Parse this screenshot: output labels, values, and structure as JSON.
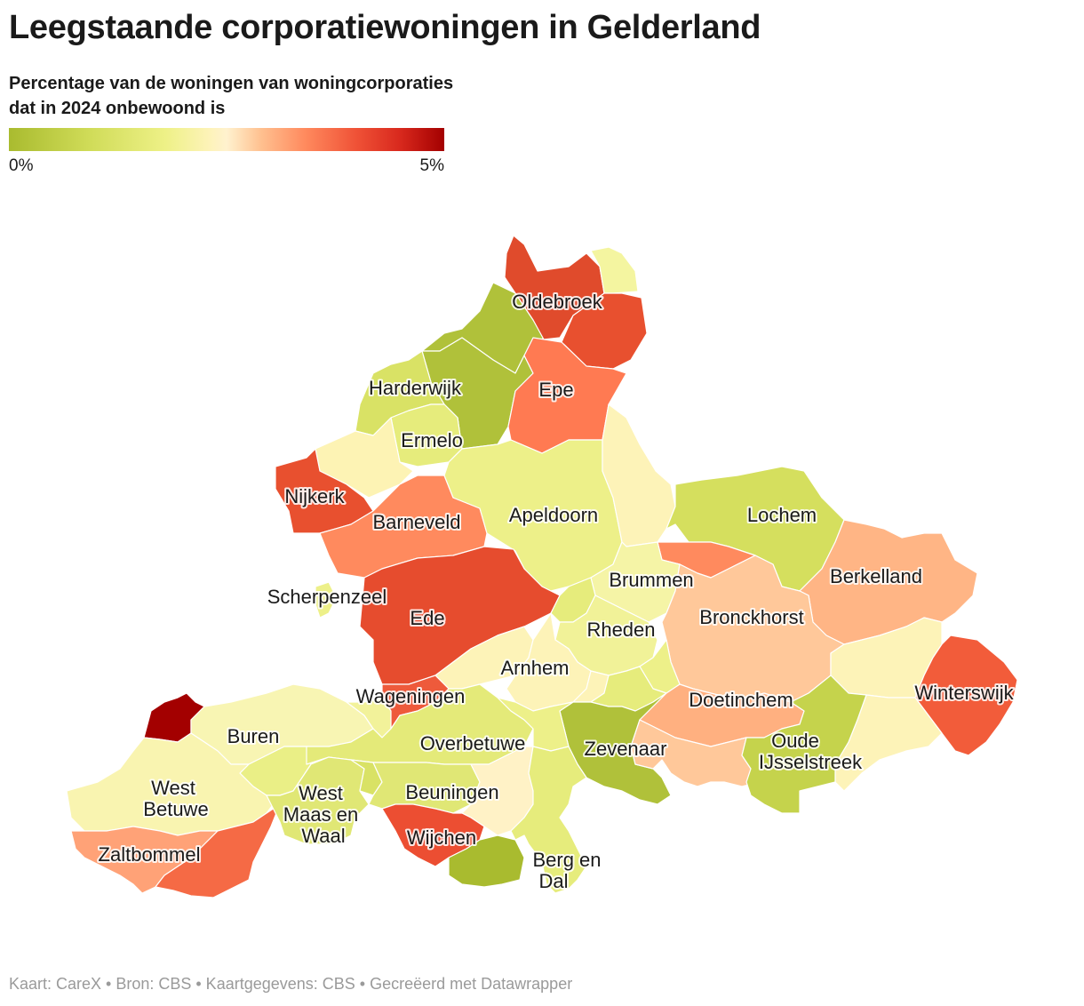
{
  "header": {
    "title": "Leegstaande corporatiewoningen in Gelderland",
    "subtitle": "Percentage van de woningen van woningcorporaties dat in 2024 onbewoond is"
  },
  "legend": {
    "min_label": "0%",
    "max_label": "5%",
    "colors": [
      "#a9bb2f",
      "#eef187",
      "#fff2cf",
      "#ff8a5e",
      "#a30000"
    ]
  },
  "map": {
    "labels": {
      "oldebroek": "Oldebroek",
      "harderwijk": "Harderwijk",
      "epe": "Epe",
      "ermelo": "Ermelo",
      "nijkerk": "Nijkerk",
      "barneveld": "Barneveld",
      "apeldoorn": "Apeldoorn",
      "lochem": "Lochem",
      "berkelland": "Berkelland",
      "brummen": "Brummen",
      "scherpenzeel": "Scherpenzeel",
      "ede": "Ede",
      "bronckhorst": "Bronckhorst",
      "rheden": "Rheden",
      "arnhem": "Arnhem",
      "winterswijk": "Winterswijk",
      "wageningen": "Wageningen",
      "doetinchem": "Doetinchem",
      "buren": "Buren",
      "overbetuwe": "Overbetuwe",
      "zevenaar": "Zevenaar",
      "oude_ijsselstreek_1": "Oude",
      "oude_ijsselstreek_2": "IJsselstreek",
      "west_betuwe_1": "West",
      "west_betuwe_2": "Betuwe",
      "west_maas_en_waal_1": "West",
      "west_maas_en_waal_2": "Maas en",
      "west_maas_en_waal_3": "Waal",
      "beuningen": "Beuningen",
      "wijchen": "Wijchen",
      "zaltbommel": "Zaltbommel",
      "berg_en_dal_1": "Berg en",
      "berg_en_dal_2": "Dal"
    },
    "region_colors": {
      "oldebroek": "#e04b2c",
      "elburg": "#b0c13a",
      "hattem": "#f4f5a0",
      "heerde": "#e8502f",
      "nunspeet": "#b0c13a",
      "harderwijk": "#d9e265",
      "ermelo": "#e6ec7c",
      "epe": "#ff7a52",
      "putten": "#fdf3b4",
      "nijkerk": "#e8502f",
      "barneveld": "#ff8a5e",
      "apeldoorn": "#edf089",
      "voorst": "#fdf3b8",
      "lochem": "#d5df5e",
      "zutphen": "#ff8a5e",
      "berkelland": "#ffb585",
      "brummen": "#f5f4a6",
      "scherpenzeel": "#edf089",
      "ede": "#e64c2e",
      "renkum": "#fdf3b8",
      "rheden": "#f1f298",
      "rozendaal": "#e6ec7c",
      "bronckhorst": "#ffc89a",
      "arnhem": "#fdf3b8",
      "doesburg": "#edf089",
      "oost_gelre": "#fdf3b8",
      "winterswijk": "#f25c3a",
      "wageningen": "#ee5a3b",
      "doetinchem": "#ffb080",
      "montferland": "#ffc89a",
      "culemborg": "#a30000",
      "buren": "#f8f5b3",
      "neder_betuwe": "#f2f29a",
      "tiel": "#eaef86",
      "overbetuwe": "#e4ea79",
      "lingewaard": "#edf089",
      "duiven": "#e6ec7c",
      "zevenaar": "#b0c13a",
      "westervoort": "#fdf3b8",
      "oude_ijsselstreek": "#c5d34c",
      "west_betuwe": "#f9f4b0",
      "west_maas_en_waal": "#e0e775",
      "druten": "#d9e265",
      "beuningen": "#e0e775",
      "nijmegen": "#fff2c6",
      "wijchen": "#ec4e32",
      "heumen": "#a9bb2f",
      "zaltbommel": "#ffa277",
      "maasdriel": "#f56a45",
      "berg_en_dal": "#e6ec7c",
      "aalten": "#fdf3b8"
    }
  }
}
